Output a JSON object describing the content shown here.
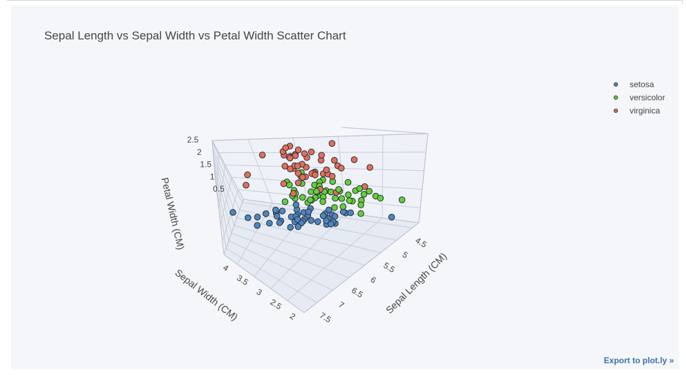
{
  "page": {
    "title": "Sepal Length vs Sepal Width vs Petal Width Scatter Chart",
    "export_label": "Export to plot.ly »"
  },
  "chart_data": {
    "type": "scatter",
    "projection": "3d",
    "title": "Sepal Length vs Sepal Width vs Petal Width Scatter Chart",
    "axes": {
      "x": {
        "label": "Sepal Length (CM)",
        "range": [
          4.3,
          7.9
        ],
        "ticks": [
          "4.5",
          "5",
          "5.5",
          "6",
          "6.5",
          "7",
          "7.5"
        ],
        "tick_values": [
          4.5,
          5,
          5.5,
          6,
          6.5,
          7,
          7.5
        ]
      },
      "y": {
        "label": "Sepal Width (CM)",
        "range": [
          2.0,
          4.4
        ],
        "ticks": [
          "2",
          "2.5",
          "3",
          "3.5",
          "4"
        ],
        "tick_values": [
          2,
          2.5,
          3,
          3.5,
          4
        ]
      },
      "z": {
        "label": "Petal Width (CM)",
        "range": [
          0.1,
          2.5
        ],
        "ticks": [
          "0.5",
          "1",
          "1.5",
          "2",
          "2.5"
        ],
        "tick_values": [
          0.5,
          1,
          1.5,
          2,
          2.5
        ]
      }
    },
    "grid": true,
    "legend": {
      "position": "top-right"
    },
    "series": [
      {
        "name": "setosa",
        "color": "#4a86c8",
        "points": [
          [
            5.1,
            3.5,
            0.2
          ],
          [
            4.9,
            3.0,
            0.2
          ],
          [
            4.7,
            3.2,
            0.2
          ],
          [
            4.6,
            3.1,
            0.2
          ],
          [
            5.0,
            3.6,
            0.2
          ],
          [
            5.4,
            3.9,
            0.4
          ],
          [
            4.6,
            3.4,
            0.3
          ],
          [
            5.0,
            3.4,
            0.2
          ],
          [
            4.4,
            2.9,
            0.2
          ],
          [
            4.9,
            3.1,
            0.1
          ],
          [
            5.4,
            3.7,
            0.2
          ],
          [
            4.8,
            3.4,
            0.2
          ],
          [
            4.8,
            3.0,
            0.1
          ],
          [
            4.3,
            3.0,
            0.1
          ],
          [
            5.8,
            4.0,
            0.2
          ],
          [
            5.7,
            4.4,
            0.4
          ],
          [
            5.4,
            3.9,
            0.4
          ],
          [
            5.1,
            3.5,
            0.3
          ],
          [
            5.7,
            3.8,
            0.3
          ],
          [
            5.1,
            3.8,
            0.3
          ],
          [
            5.4,
            3.4,
            0.2
          ],
          [
            5.1,
            3.7,
            0.4
          ],
          [
            4.6,
            3.6,
            0.2
          ],
          [
            5.1,
            3.3,
            0.5
          ],
          [
            4.8,
            3.4,
            0.2
          ],
          [
            5.0,
            3.0,
            0.2
          ],
          [
            5.0,
            3.4,
            0.4
          ],
          [
            5.2,
            3.5,
            0.2
          ],
          [
            5.2,
            3.4,
            0.2
          ],
          [
            4.7,
            3.2,
            0.2
          ],
          [
            4.8,
            3.1,
            0.2
          ],
          [
            5.4,
            3.4,
            0.4
          ],
          [
            5.2,
            4.1,
            0.1
          ],
          [
            5.5,
            4.2,
            0.2
          ],
          [
            4.9,
            3.1,
            0.2
          ],
          [
            5.0,
            3.2,
            0.2
          ],
          [
            5.5,
            3.5,
            0.2
          ],
          [
            4.4,
            3.0,
            0.2
          ],
          [
            5.1,
            3.4,
            0.2
          ],
          [
            5.0,
            3.5,
            0.3
          ],
          [
            4.5,
            2.3,
            0.3
          ],
          [
            4.4,
            3.2,
            0.2
          ],
          [
            5.0,
            3.5,
            0.6
          ],
          [
            5.1,
            3.8,
            0.4
          ],
          [
            4.8,
            3.0,
            0.3
          ],
          [
            5.1,
            3.8,
            0.2
          ],
          [
            4.6,
            3.2,
            0.2
          ],
          [
            5.3,
            3.7,
            0.2
          ],
          [
            5.0,
            3.3,
            0.2
          ]
        ]
      },
      {
        "name": "versicolor",
        "color": "#5fd13b",
        "points": [
          [
            7.0,
            3.2,
            1.4
          ],
          [
            6.4,
            3.2,
            1.5
          ],
          [
            6.9,
            3.1,
            1.5
          ],
          [
            5.5,
            2.3,
            1.3
          ],
          [
            6.5,
            2.8,
            1.5
          ],
          [
            5.7,
            2.8,
            1.3
          ],
          [
            6.3,
            3.3,
            1.6
          ],
          [
            4.9,
            2.4,
            1.0
          ],
          [
            6.6,
            2.9,
            1.3
          ],
          [
            5.2,
            2.7,
            1.4
          ],
          [
            5.0,
            2.0,
            1.0
          ],
          [
            5.9,
            3.0,
            1.5
          ],
          [
            6.0,
            2.2,
            1.0
          ],
          [
            6.1,
            2.9,
            1.4
          ],
          [
            5.6,
            2.9,
            1.3
          ],
          [
            6.7,
            3.1,
            1.4
          ],
          [
            5.6,
            3.0,
            1.5
          ],
          [
            5.8,
            2.7,
            1.0
          ],
          [
            6.2,
            2.2,
            1.5
          ],
          [
            5.6,
            2.5,
            1.1
          ],
          [
            5.9,
            3.2,
            1.8
          ],
          [
            6.1,
            2.8,
            1.3
          ],
          [
            6.3,
            2.5,
            1.5
          ],
          [
            6.1,
            2.8,
            1.2
          ],
          [
            6.4,
            2.9,
            1.3
          ],
          [
            6.6,
            3.0,
            1.4
          ],
          [
            6.8,
            2.8,
            1.4
          ],
          [
            6.7,
            3.0,
            1.7
          ],
          [
            6.0,
            2.9,
            1.5
          ],
          [
            5.7,
            2.6,
            1.0
          ],
          [
            5.5,
            2.4,
            1.1
          ],
          [
            5.5,
            2.4,
            1.0
          ],
          [
            5.8,
            2.7,
            1.2
          ],
          [
            6.0,
            2.7,
            1.6
          ],
          [
            5.4,
            3.0,
            1.5
          ],
          [
            6.0,
            3.4,
            1.6
          ],
          [
            6.7,
            3.1,
            1.5
          ],
          [
            6.3,
            2.3,
            1.3
          ],
          [
            5.6,
            3.0,
            1.3
          ],
          [
            5.5,
            2.5,
            1.3
          ],
          [
            5.5,
            2.6,
            1.2
          ],
          [
            6.1,
            3.0,
            1.4
          ],
          [
            5.8,
            2.6,
            1.2
          ],
          [
            5.0,
            2.3,
            1.0
          ],
          [
            5.6,
            2.7,
            1.3
          ],
          [
            5.7,
            3.0,
            1.2
          ],
          [
            5.7,
            2.9,
            1.3
          ],
          [
            6.2,
            2.9,
            1.3
          ],
          [
            5.1,
            2.5,
            1.1
          ],
          [
            5.7,
            2.8,
            1.3
          ]
        ]
      },
      {
        "name": "virginica",
        "color": "#e0705e",
        "points": [
          [
            6.3,
            3.3,
            2.5
          ],
          [
            5.8,
            2.7,
            1.9
          ],
          [
            7.1,
            3.0,
            2.1
          ],
          [
            6.3,
            2.9,
            1.8
          ],
          [
            6.5,
            3.0,
            2.2
          ],
          [
            7.6,
            3.0,
            2.1
          ],
          [
            4.9,
            2.5,
            1.7
          ],
          [
            7.3,
            2.9,
            1.8
          ],
          [
            6.7,
            2.5,
            1.8
          ],
          [
            7.2,
            3.6,
            2.5
          ],
          [
            6.5,
            3.2,
            2.0
          ],
          [
            6.4,
            2.7,
            1.9
          ],
          [
            6.8,
            3.0,
            2.1
          ],
          [
            5.7,
            2.5,
            2.0
          ],
          [
            5.8,
            2.8,
            2.4
          ],
          [
            6.4,
            3.2,
            2.3
          ],
          [
            6.5,
            3.0,
            1.8
          ],
          [
            7.7,
            3.8,
            2.2
          ],
          [
            7.7,
            2.6,
            2.3
          ],
          [
            6.0,
            2.2,
            1.5
          ],
          [
            6.9,
            3.2,
            2.3
          ],
          [
            5.6,
            2.8,
            2.0
          ],
          [
            7.7,
            2.8,
            2.0
          ],
          [
            6.3,
            2.7,
            1.8
          ],
          [
            6.7,
            3.3,
            2.1
          ],
          [
            7.2,
            3.2,
            1.8
          ],
          [
            6.2,
            2.8,
            1.8
          ],
          [
            6.1,
            3.0,
            1.8
          ],
          [
            6.4,
            2.8,
            2.1
          ],
          [
            7.2,
            3.0,
            1.6
          ],
          [
            7.4,
            2.8,
            1.9
          ],
          [
            7.9,
            3.8,
            2.0
          ],
          [
            6.4,
            2.8,
            2.2
          ],
          [
            6.3,
            2.8,
            1.5
          ],
          [
            6.1,
            2.6,
            1.4
          ],
          [
            7.7,
            3.0,
            2.3
          ],
          [
            6.3,
            3.4,
            2.4
          ],
          [
            6.4,
            3.1,
            1.8
          ],
          [
            6.0,
            3.0,
            1.8
          ],
          [
            6.9,
            3.1,
            2.1
          ],
          [
            6.7,
            3.1,
            2.4
          ],
          [
            6.9,
            3.1,
            2.3
          ],
          [
            6.8,
            3.2,
            2.3
          ],
          [
            6.7,
            3.3,
            2.5
          ],
          [
            6.7,
            3.0,
            2.3
          ],
          [
            6.3,
            2.5,
            1.9
          ],
          [
            6.5,
            3.0,
            2.0
          ],
          [
            6.2,
            3.4,
            2.3
          ],
          [
            5.9,
            3.0,
            1.8
          ]
        ]
      }
    ]
  }
}
